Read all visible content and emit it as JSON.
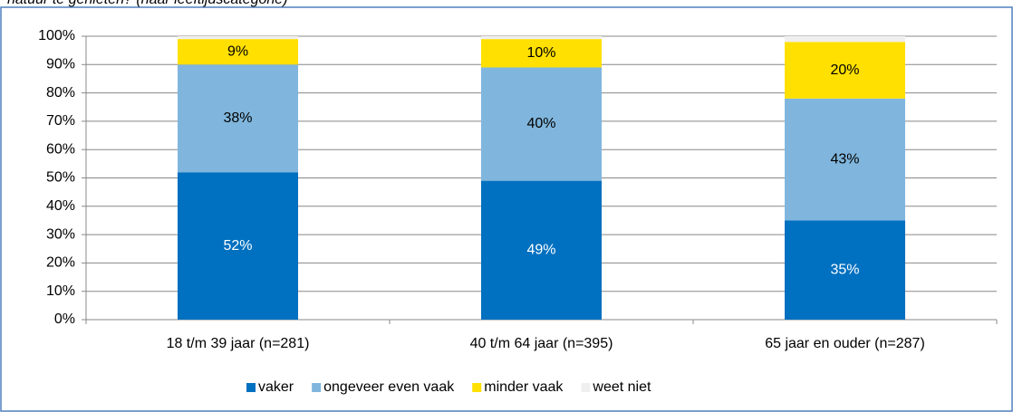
{
  "chart_data": {
    "type": "stacked_bar",
    "title": "natuur te genieten? (naar leeftijdscategorie)",
    "categories": [
      "18 t/m 39 jaar (n=281)",
      "40 t/m 64 jaar (n=395)",
      "65 jaar en ouder (n=287)"
    ],
    "series": [
      {
        "name": "vaker",
        "color": "#0070c0",
        "label_color": "#ffffff",
        "values": [
          52,
          49,
          35
        ],
        "value_labels": [
          "52%",
          "49%",
          "35%"
        ]
      },
      {
        "name": "ongeveer even vaak",
        "color": "#80b6dd",
        "label_color": "#000000",
        "values": [
          38,
          40,
          43
        ],
        "value_labels": [
          "38%",
          "40%",
          "43%"
        ]
      },
      {
        "name": "minder vaak",
        "color": "#ffe000",
        "label_color": "#000000",
        "values": [
          9,
          10,
          20
        ],
        "value_labels": [
          "9%",
          "10%",
          "20%"
        ]
      },
      {
        "name": "weet niet",
        "color": "#efefef",
        "values": [
          1,
          1,
          2
        ]
      }
    ],
    "ylim": [
      0,
      100
    ],
    "yticks": [
      {
        "value": 0,
        "label": "0%"
      },
      {
        "value": 10,
        "label": "10%"
      },
      {
        "value": 20,
        "label": "20%"
      },
      {
        "value": 30,
        "label": "30%"
      },
      {
        "value": 40,
        "label": "40%"
      },
      {
        "value": 50,
        "label": "50%"
      },
      {
        "value": 60,
        "label": "60%"
      },
      {
        "value": 70,
        "label": "70%"
      },
      {
        "value": 80,
        "label": "80%"
      },
      {
        "value": 90,
        "label": "90%"
      },
      {
        "value": 100,
        "label": "100%"
      }
    ],
    "grid": true,
    "legend": "bottom"
  }
}
